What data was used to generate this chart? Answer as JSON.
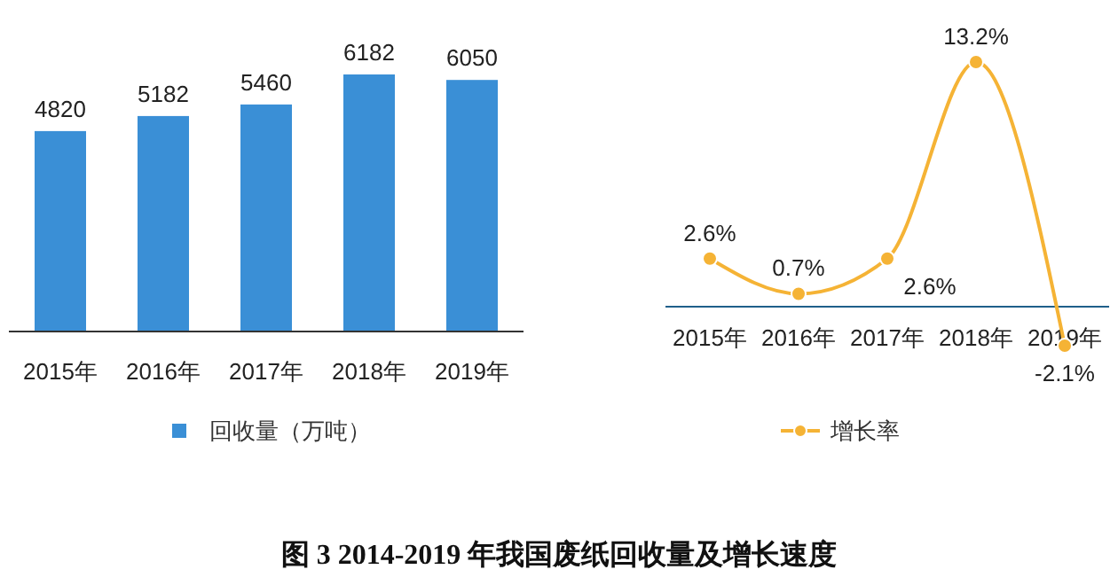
{
  "chart_data": [
    {
      "type": "bar",
      "title": "图 3 2014-2019 年我国废纸回收量及增长速度",
      "categories": [
        "2015年",
        "2016年",
        "2017年",
        "2018年",
        "2019年"
      ],
      "series": [
        {
          "name": "回收量（万吨）",
          "color": "#3a8fd6",
          "values": [
            4820,
            5182,
            5460,
            6182,
            6050
          ]
        }
      ],
      "data_labels": true,
      "legend": "bottom"
    },
    {
      "type": "line",
      "categories": [
        "2015年",
        "2016年",
        "2017年",
        "2018年",
        "2019年"
      ],
      "series": [
        {
          "name": "增长率",
          "color": "#f5b335",
          "values": [
            2.6,
            0.7,
            2.6,
            13.2,
            -2.1
          ],
          "value_labels": [
            "2.6%",
            "0.7%",
            "2.6%",
            "13.2%",
            "-2.1%"
          ]
        }
      ],
      "marker": "circle",
      "legend": "bottom"
    }
  ]
}
